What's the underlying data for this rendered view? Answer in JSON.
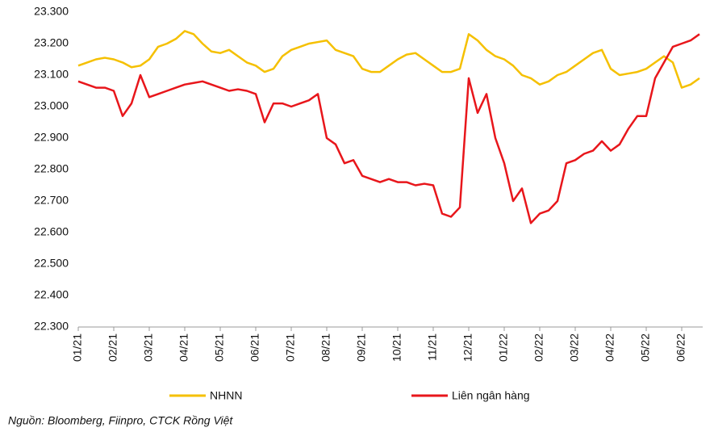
{
  "chart_data": {
    "type": "line",
    "categories": [
      "01/21",
      null,
      null,
      null,
      "02/21",
      null,
      null,
      null,
      "03/21",
      null,
      null,
      null,
      "04/21",
      null,
      null,
      null,
      "05/21",
      null,
      null,
      null,
      "06/21",
      null,
      null,
      null,
      "07/21",
      null,
      null,
      null,
      "08/21",
      null,
      null,
      null,
      "09/21",
      null,
      null,
      null,
      "10/21",
      null,
      null,
      null,
      "11/21",
      null,
      null,
      null,
      "12/21",
      null,
      null,
      null,
      "01/22",
      null,
      null,
      null,
      "02/22",
      null,
      null,
      null,
      "03/22",
      null,
      null,
      null,
      "04/22",
      null,
      null,
      null,
      "05/22",
      null,
      null,
      null,
      "06/22",
      null,
      null
    ],
    "series": [
      {
        "name": "NHNN",
        "color": "#f5c000",
        "values": [
          23130,
          23140,
          23150,
          23155,
          23150,
          23140,
          23125,
          23130,
          23150,
          23190,
          23200,
          23215,
          23240,
          23230,
          23200,
          23175,
          23170,
          23180,
          23160,
          23140,
          23130,
          23110,
          23120,
          23160,
          23180,
          23190,
          23200,
          23205,
          23210,
          23180,
          23170,
          23160,
          23120,
          23110,
          23110,
          23130,
          23150,
          23165,
          23170,
          23150,
          23130,
          23110,
          23110,
          23120,
          23230,
          23210,
          23180,
          23160,
          23150,
          23130,
          23100,
          23090,
          23070,
          23080,
          23100,
          23110,
          23130,
          23150,
          23170,
          23180,
          23120,
          23100,
          23105,
          23110,
          23120,
          23140,
          23160,
          23140,
          23060,
          23070,
          23090
        ]
      },
      {
        "name": "Liên ngân hàng",
        "color": "#e8161b",
        "values": [
          23080,
          23070,
          23060,
          23060,
          23050,
          22970,
          23010,
          23100,
          23030,
          23040,
          23050,
          23060,
          23070,
          23075,
          23080,
          23070,
          23060,
          23050,
          23055,
          23050,
          23040,
          22950,
          23010,
          23010,
          23000,
          23010,
          23020,
          23040,
          22900,
          22880,
          22820,
          22830,
          22780,
          22770,
          22760,
          22770,
          22760,
          22760,
          22750,
          22755,
          22750,
          22660,
          22650,
          22680,
          23090,
          22980,
          23040,
          22900,
          22820,
          22700,
          22740,
          22630,
          22660,
          22670,
          22700,
          22820,
          22830,
          22850,
          22860,
          22890,
          22860,
          22880,
          22930,
          22970,
          22970,
          23090,
          23140,
          23190,
          23200,
          23210,
          23230
        ]
      }
    ],
    "ylim": [
      22300,
      23300
    ],
    "yticks": [
      {
        "value": 22300,
        "label": "22.300"
      },
      {
        "value": 22400,
        "label": "22.400"
      },
      {
        "value": 22500,
        "label": "22.500"
      },
      {
        "value": 22600,
        "label": "22.600"
      },
      {
        "value": 22700,
        "label": "22.700"
      },
      {
        "value": 22800,
        "label": "22.800"
      },
      {
        "value": 22900,
        "label": "22.900"
      },
      {
        "value": 23000,
        "label": "23.000"
      },
      {
        "value": 23100,
        "label": "23.100"
      },
      {
        "value": 23200,
        "label": "23.200"
      },
      {
        "value": 23300,
        "label": "23.300"
      }
    ],
    "grid": false,
    "legend": "bottom",
    "source": "Nguồn: Bloomberg, Fiinpro, CTCK Rồng Việt"
  }
}
